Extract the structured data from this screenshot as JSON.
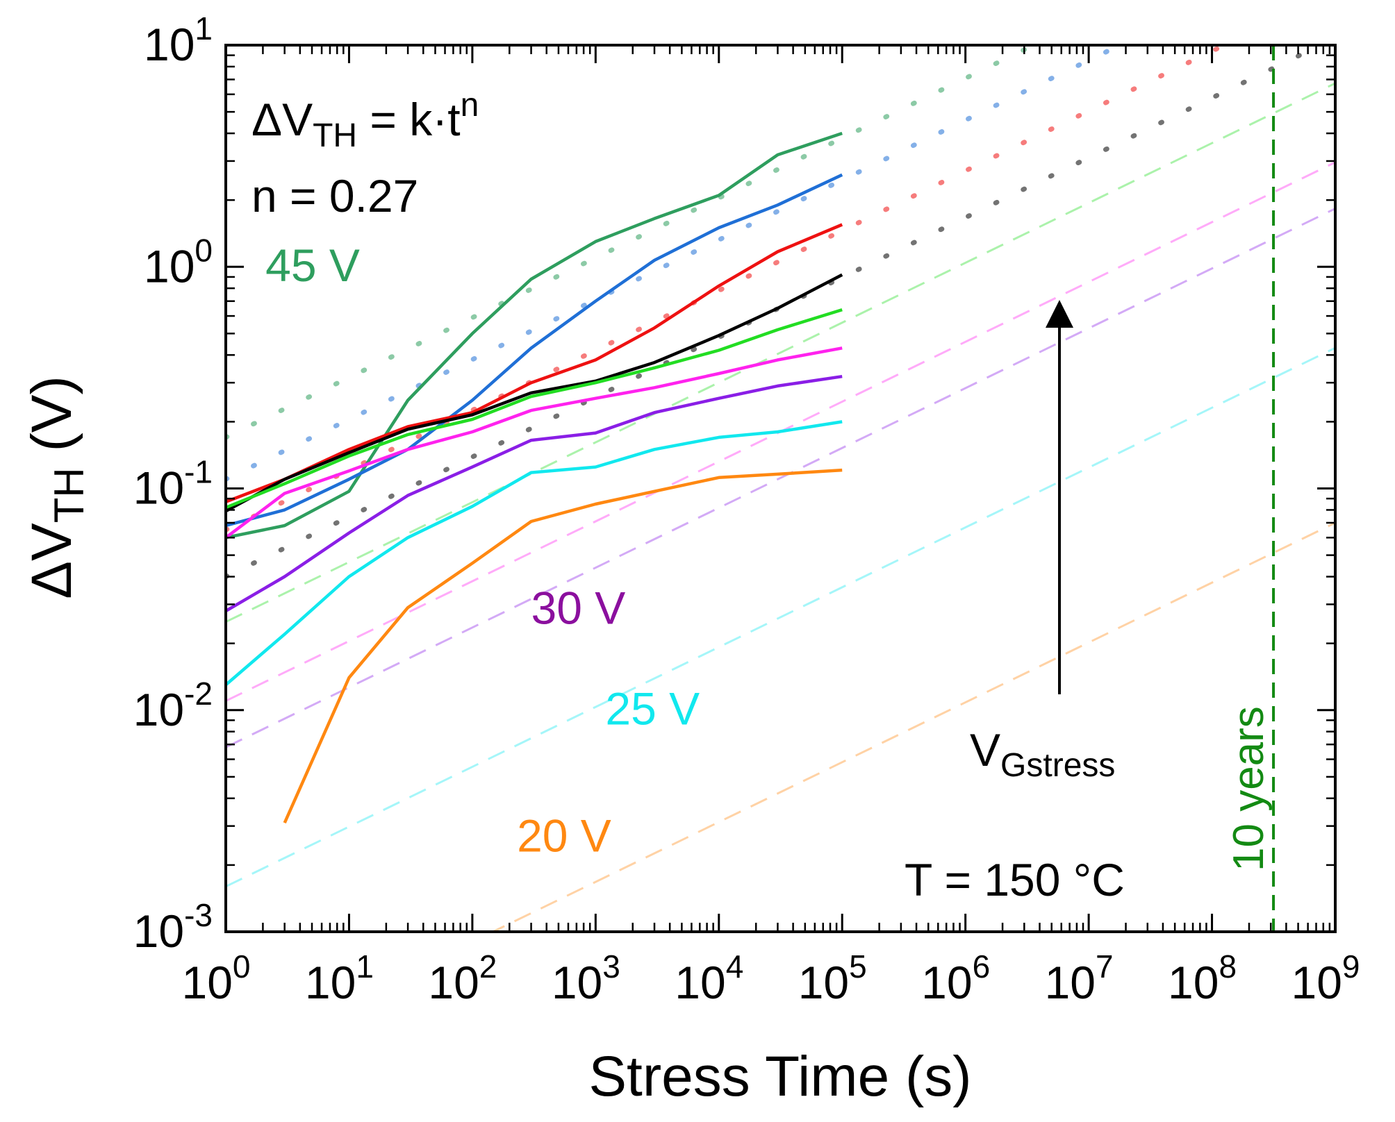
{
  "chart_data": {
    "type": "line",
    "x_scale": "log",
    "y_scale": "log",
    "xlabel": "Stress Time (s)",
    "ylabel_main": "ΔV",
    "ylabel_sub": "TH",
    "ylabel_tail": " (V)",
    "xlim": [
      1,
      1000000000
    ],
    "ylim": [
      0.001,
      10
    ],
    "x_tick_exponents": [
      "0",
      "1",
      "2",
      "3",
      "4",
      "5",
      "6",
      "7",
      "8",
      "9"
    ],
    "y_tick_exponents": [
      "-3",
      "-2",
      "-1",
      "0",
      "1"
    ],
    "tick_base": "10",
    "annotations": {
      "formula_main": "ΔV",
      "formula_sub": "TH",
      "formula_mid": " = k·t",
      "formula_sup": "n",
      "n_value": "n = 0.27",
      "temperature": "T = 150 °C",
      "arrow_label_main": "V",
      "arrow_label_sub": "Gstress",
      "ten_years": "10 years",
      "ten_years_x": 315360000
    },
    "series": [
      {
        "name": "45 V",
        "color": "#2e9e5e",
        "fit_style": "dotted",
        "x": [
          1,
          3,
          10,
          30,
          100,
          300,
          1000,
          3000,
          10000,
          30000,
          100000
        ],
        "y": [
          0.06,
          0.068,
          0.097,
          0.25,
          0.5,
          0.88,
          1.3,
          1.65,
          2.1,
          3.2,
          4.0
        ],
        "fit_k": 0.17,
        "fit_n": 0.27
      },
      {
        "name": "",
        "color": "#1f6fd6",
        "fit_style": "dotted",
        "x": [
          1,
          3,
          10,
          30,
          100,
          300,
          1000,
          3000,
          10000,
          30000,
          100000
        ],
        "y": [
          0.068,
          0.08,
          0.11,
          0.15,
          0.25,
          0.43,
          0.7,
          1.07,
          1.5,
          1.9,
          2.6
        ],
        "fit_k": 0.11,
        "fit_n": 0.27
      },
      {
        "name": "",
        "color": "#ee1111",
        "fit_style": "dotted",
        "x": [
          1,
          3,
          10,
          30,
          100,
          300,
          1000,
          3000,
          10000,
          30000,
          100000
        ],
        "y": [
          0.087,
          0.11,
          0.15,
          0.19,
          0.22,
          0.3,
          0.38,
          0.53,
          0.82,
          1.17,
          1.55
        ],
        "fit_k": 0.065,
        "fit_n": 0.27
      },
      {
        "name": "",
        "color": "#000000",
        "fit_style": "dotted",
        "x": [
          1,
          3,
          10,
          30,
          100,
          300,
          1000,
          3000,
          10000,
          30000,
          100000
        ],
        "y": [
          0.079,
          0.11,
          0.145,
          0.185,
          0.215,
          0.27,
          0.305,
          0.37,
          0.49,
          0.65,
          0.92
        ],
        "fit_k": 0.04,
        "fit_n": 0.27
      },
      {
        "name": "",
        "color": "#22dd22",
        "fit_style": "dashed",
        "x": [
          1,
          3,
          10,
          30,
          100,
          300,
          1000,
          3000,
          10000,
          30000,
          100000
        ],
        "y": [
          0.082,
          0.105,
          0.14,
          0.175,
          0.205,
          0.26,
          0.3,
          0.35,
          0.42,
          0.52,
          0.64
        ],
        "fit_k": 0.025,
        "fit_n": 0.27
      },
      {
        "name": "",
        "color": "#ff22ee",
        "fit_style": "dashed",
        "x": [
          1,
          3,
          10,
          30,
          100,
          300,
          1000,
          3000,
          10000,
          30000,
          100000
        ],
        "y": [
          0.06,
          0.095,
          0.12,
          0.15,
          0.18,
          0.225,
          0.255,
          0.285,
          0.33,
          0.38,
          0.43
        ],
        "fit_k": 0.011,
        "fit_n": 0.27
      },
      {
        "name": "30 V",
        "color": "#8a1ee6",
        "fit_style": "dashed",
        "x": [
          1,
          3,
          10,
          30,
          100,
          300,
          1000,
          3000,
          10000,
          30000,
          100000
        ],
        "y": [
          0.028,
          0.04,
          0.063,
          0.093,
          0.125,
          0.165,
          0.178,
          0.22,
          0.255,
          0.29,
          0.32
        ],
        "fit_k": 0.0068,
        "fit_n": 0.27
      },
      {
        "name": "25 V",
        "color": "#11e8ee",
        "fit_style": "dashed",
        "x": [
          1,
          3,
          10,
          30,
          100,
          300,
          1000,
          3000,
          10000,
          30000,
          100000
        ],
        "y": [
          0.013,
          0.022,
          0.04,
          0.06,
          0.083,
          0.118,
          0.125,
          0.15,
          0.17,
          0.18,
          0.2
        ],
        "fit_k": 0.0016,
        "fit_n": 0.27
      },
      {
        "name": "20 V",
        "color": "#ff8811",
        "fit_style": "dashed",
        "x": [
          3,
          10,
          30,
          100,
          300,
          1000,
          3000,
          10000,
          30000,
          100000
        ],
        "y": [
          0.0031,
          0.014,
          0.029,
          0.046,
          0.071,
          0.085,
          0.097,
          0.112,
          0.116,
          0.121
        ],
        "fit_k": 0.00026,
        "fit_n": 0.27
      }
    ]
  }
}
